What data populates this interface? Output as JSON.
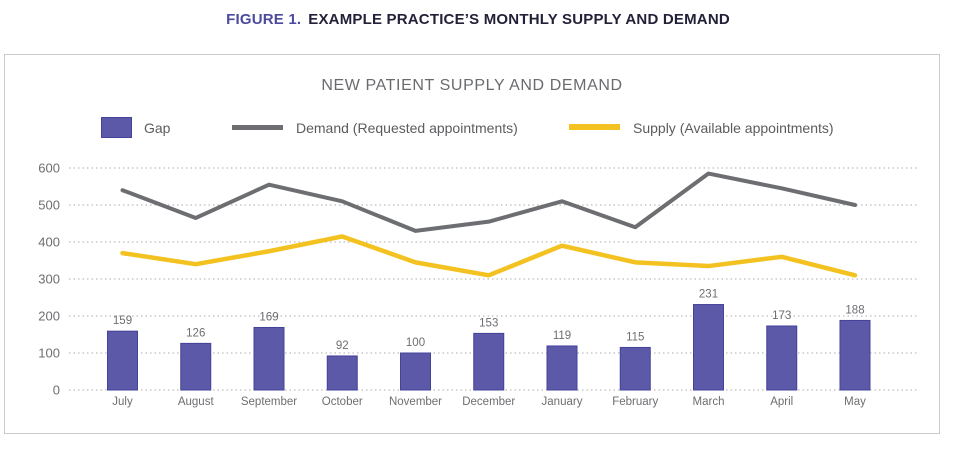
{
  "figure_caption": {
    "label": "FIGURE 1.",
    "text": "EXAMPLE PRACTICE’S MONTHLY SUPPLY AND DEMAND"
  },
  "colors": {
    "figure_label": "#4c4a9f",
    "caption_text": "#232138",
    "chart_title": "#6a6b6e",
    "legend_text": "#5b5c5e",
    "axis_text": "#6d6e71",
    "value_label_text": "#6d6e71",
    "grid": "#ababab",
    "card_border": "#c9cacb",
    "gap_fill": "#5c59a9",
    "gap_border": "#45429a",
    "demand_line": "#6d6e71",
    "supply_line": "#f3c220"
  },
  "chart_data": {
    "type": "bar+line",
    "title": "NEW PATIENT SUPPLY AND DEMAND",
    "categories": [
      "July",
      "August",
      "September",
      "October",
      "November",
      "December",
      "January",
      "February",
      "March",
      "April",
      "May"
    ],
    "series": [
      {
        "name": "Gap",
        "type": "bar",
        "values": [
          159,
          126,
          169,
          92,
          100,
          153,
          119,
          115,
          231,
          173,
          188
        ],
        "color": "#5c59a9",
        "border": "#45429a",
        "value_labels": true
      },
      {
        "name": "Demand (Requested appointments)",
        "type": "line",
        "values": [
          540,
          465,
          555,
          510,
          430,
          455,
          510,
          440,
          585,
          545,
          500
        ],
        "color": "#6d6e71",
        "stroke_width": 4
      },
      {
        "name": "Supply (Available appointments)",
        "type": "line",
        "values": [
          370,
          340,
          375,
          415,
          345,
          310,
          390,
          345,
          335,
          360,
          310
        ],
        "color": "#f3c220",
        "stroke_width": 4.5
      }
    ],
    "xlabel": "",
    "ylabel": "",
    "ylim": [
      0,
      600
    ],
    "yticks": [
      0,
      100,
      200,
      300,
      400,
      500,
      600
    ],
    "grid": "horizontal-dotted",
    "legend_position": "top"
  }
}
